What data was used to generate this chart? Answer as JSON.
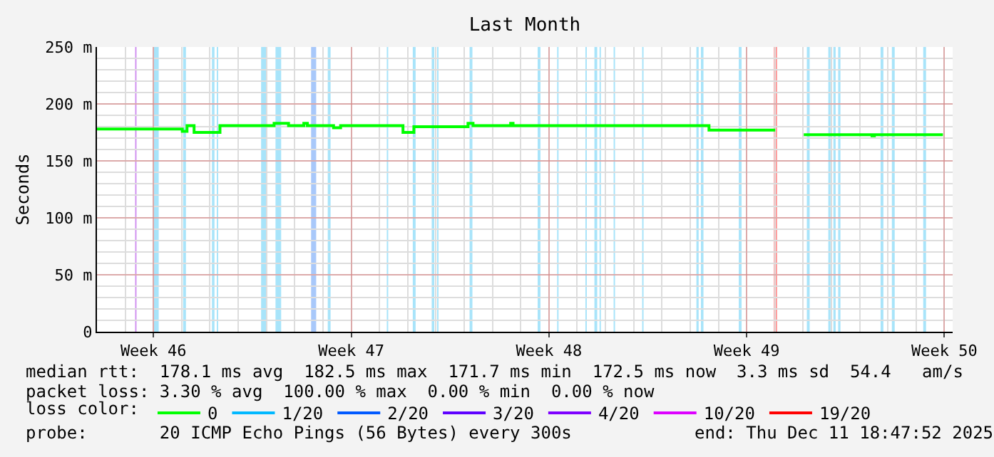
{
  "chart_data": {
    "type": "step",
    "title": "Last Month",
    "ylabel": "Seconds",
    "legend_title": "loss color:",
    "legend": "bottom",
    "grid": true,
    "marker": "none",
    "line_style": "solid",
    "xlim": [
      "2025-11-08T00:00",
      "2025-12-08T07:00"
    ],
    "xticks": [
      {
        "value": "2025-11-10",
        "label": "Week 46"
      },
      {
        "value": "2025-11-17",
        "label": "Week 47"
      },
      {
        "value": "2025-11-24",
        "label": "Week 48"
      },
      {
        "value": "2025-12-01",
        "label": "Week 49"
      },
      {
        "value": "2025-12-08",
        "label": "Week 50"
      }
    ],
    "ylim": [
      0,
      250
    ],
    "yticks": [
      0,
      {
        "value": 50,
        "label": "50 m"
      },
      {
        "value": 100,
        "label": "100 m"
      },
      {
        "value": 150,
        "label": "150 m"
      },
      {
        "value": 200,
        "label": "200 m"
      },
      {
        "value": 250,
        "label": "250 m"
      }
    ],
    "x": [
      "2025-11-08T00:00",
      "2025-11-10T16:30",
      "2025-11-11T00:30",
      "2025-11-11T04:30",
      "2025-11-11T10:30",
      "2025-11-12T02:30",
      "2025-11-12T08:30",
      "2025-11-14T06:30",
      "2025-11-14T18:45",
      "2025-11-15T07:45",
      "2025-11-15T10:45",
      "2025-11-16T09:00",
      "2025-11-16T15:00",
      "2025-11-18T19:00",
      "2025-11-18T20:00",
      "2025-11-19T03:00",
      "2025-11-19T05:15",
      "2025-11-20T23:15",
      "2025-11-21T03:15",
      "2025-11-21T07:30",
      "2025-11-22T15:30",
      "2025-11-22T17:30",
      "2025-11-29T14:00",
      "2025-11-29T16:00",
      "2025-12-02T00:15",
      "2025-12-02T12:00",
      "2025-12-03T00:30",
      "2025-12-05T10:30",
      "2025-12-05T12:30",
      "2025-12-07T22:45"
    ],
    "series": [
      {
        "name": "0",
        "color": "#00ff00",
        "values": [
          178,
          178,
          176,
          181,
          175,
          175,
          181,
          183,
          181,
          183,
          181,
          179,
          181,
          181,
          175,
          175,
          180,
          180,
          183,
          181,
          183,
          181,
          181,
          177,
          177,
          null,
          173,
          172,
          173,
          173
        ]
      },
      {
        "name": "1/20",
        "color": "#00b8ff",
        "values": [
          null,
          null,
          null,
          null,
          null,
          null,
          null,
          null,
          null,
          null,
          null,
          null,
          null,
          null,
          null,
          null,
          null,
          null,
          null,
          null,
          null,
          null,
          null,
          null,
          null,
          null,
          null,
          null,
          null,
          null
        ]
      },
      {
        "name": "2/20",
        "color": "#0059ff",
        "values": [
          null,
          null,
          null,
          null,
          null,
          null,
          null,
          null,
          null,
          null,
          null,
          null,
          null,
          null,
          null,
          null,
          null,
          null,
          null,
          null,
          null,
          null,
          null,
          null,
          null,
          null,
          null,
          null,
          null,
          null
        ]
      },
      {
        "name": "3/20",
        "color": "#5e00ff",
        "values": [
          null,
          null,
          null,
          null,
          null,
          null,
          null,
          null,
          null,
          null,
          null,
          null,
          null,
          null,
          null,
          null,
          null,
          null,
          null,
          null,
          null,
          null,
          null,
          null,
          null,
          null,
          null,
          null,
          null,
          null
        ]
      },
      {
        "name": "4/20",
        "color": "#7e00ff",
        "values": [
          null,
          null,
          null,
          null,
          null,
          null,
          null,
          null,
          null,
          null,
          null,
          null,
          null,
          null,
          null,
          null,
          null,
          null,
          null,
          null,
          null,
          null,
          null,
          null,
          null,
          null,
          null,
          null,
          null,
          null
        ]
      },
      {
        "name": "10/20",
        "color": "#dd00ff",
        "values": [
          null,
          null,
          null,
          null,
          null,
          null,
          null,
          null,
          null,
          null,
          null,
          null,
          null,
          null,
          null,
          null,
          null,
          null,
          null,
          null,
          null,
          null,
          null,
          null,
          null,
          null,
          null,
          null,
          null,
          null
        ]
      },
      {
        "name": "19/20",
        "color": "#ff0000",
        "values": [
          null,
          null,
          null,
          null,
          null,
          null,
          null,
          null,
          null,
          null,
          null,
          null,
          null,
          null,
          null,
          null,
          null,
          null,
          null,
          null,
          null,
          null,
          null,
          null,
          null,
          null,
          null,
          null,
          null,
          null
        ]
      }
    ],
    "bands": [
      {
        "axis": "x",
        "from": "2025-11-09T08:24",
        "to": "2025-11-09T09:36",
        "color": "#d090f0"
      },
      {
        "axis": "x",
        "from": "2025-11-10T00:22",
        "to": "2025-11-10T04:28",
        "color": "#a8e4fa"
      },
      {
        "axis": "x",
        "from": "2025-11-11T01:12",
        "to": "2025-11-11T03:36",
        "color": "#a8e4fa"
      },
      {
        "axis": "x",
        "from": "2025-11-12T01:41",
        "to": "2025-11-12T03:50",
        "color": "#a8e4fa"
      },
      {
        "axis": "x",
        "from": "2025-11-12T05:46",
        "to": "2025-11-12T06:58",
        "color": "#a8e4fa"
      },
      {
        "axis": "x",
        "from": "2025-11-13T19:26",
        "to": "2025-11-14T00:14",
        "color": "#a8e4fa"
      },
      {
        "axis": "x",
        "from": "2025-11-14T07:41",
        "to": "2025-11-14T12:29",
        "color": "#a8e4fa"
      },
      {
        "axis": "x",
        "from": "2025-11-15T13:55",
        "to": "2025-11-15T18:14",
        "color": "#a8c8fa"
      },
      {
        "axis": "x",
        "from": "2025-11-16T04:05",
        "to": "2025-11-16T06:29",
        "color": "#a8e4fa"
      },
      {
        "axis": "x",
        "from": "2025-11-18T06:14",
        "to": "2025-11-18T07:26",
        "color": "#a8e4fa"
      },
      {
        "axis": "x",
        "from": "2025-11-19T04:19",
        "to": "2025-11-19T06:43",
        "color": "#a8e4fa"
      },
      {
        "axis": "x",
        "from": "2025-11-19T20:24",
        "to": "2025-11-19T22:34",
        "color": "#a8e4fa"
      },
      {
        "axis": "x",
        "from": "2025-11-20T00:58",
        "to": "2025-11-20T02:10",
        "color": "#a8e4fa"
      },
      {
        "axis": "x",
        "from": "2025-11-21T04:34",
        "to": "2025-11-21T06:58",
        "color": "#a8e4fa"
      },
      {
        "axis": "x",
        "from": "2025-11-23T14:24",
        "to": "2025-11-23T16:48",
        "color": "#a8e4fa"
      },
      {
        "axis": "x",
        "from": "2025-11-24T06:58",
        "to": "2025-11-24T08:10",
        "color": "#a8e4fa"
      },
      {
        "axis": "x",
        "from": "2025-11-25T06:58",
        "to": "2025-11-25T08:10",
        "color": "#a8e4fa"
      },
      {
        "axis": "x",
        "from": "2025-11-25T14:38",
        "to": "2025-11-25T17:02",
        "color": "#a8e4fa"
      },
      {
        "axis": "x",
        "from": "2025-11-25T18:58",
        "to": "2025-11-25T20:10",
        "color": "#a8e4fa"
      },
      {
        "axis": "x",
        "from": "2025-11-26T06:58",
        "to": "2025-11-26T08:10",
        "color": "#a8e4fa"
      },
      {
        "axis": "x",
        "from": "2025-11-27T07:12",
        "to": "2025-11-27T08:24",
        "color": "#a8e4fa"
      },
      {
        "axis": "x",
        "from": "2025-11-29T05:17",
        "to": "2025-11-29T07:12",
        "color": "#a8e4fa"
      },
      {
        "axis": "x",
        "from": "2025-11-29T09:07",
        "to": "2025-11-29T11:17",
        "color": "#a8e4fa"
      },
      {
        "axis": "x",
        "from": "2025-11-30T17:17",
        "to": "2025-11-30T19:41",
        "color": "#a8e4fa"
      },
      {
        "axis": "x",
        "from": "2025-12-01T23:02",
        "to": "2025-12-02T01:55",
        "color": "#ff9a9a"
      },
      {
        "axis": "x",
        "from": "2025-12-03T03:07",
        "to": "2025-12-03T05:31",
        "color": "#a8e4fa"
      },
      {
        "axis": "x",
        "from": "2025-12-03T21:22",
        "to": "2025-12-03T23:17",
        "color": "#a8e4fa"
      },
      {
        "axis": "x",
        "from": "2025-12-04T01:41",
        "to": "2025-12-04T03:36",
        "color": "#a8e4fa"
      },
      {
        "axis": "x",
        "from": "2025-12-04T05:46",
        "to": "2025-12-04T07:41",
        "color": "#a8e4fa"
      },
      {
        "axis": "x",
        "from": "2025-12-05T17:46",
        "to": "2025-12-05T20:10",
        "color": "#a8e4fa"
      },
      {
        "axis": "x",
        "from": "2025-12-06T03:22",
        "to": "2025-12-06T05:46",
        "color": "#a8e4fa"
      },
      {
        "axis": "x",
        "from": "2025-12-07T06:00",
        "to": "2025-12-07T08:24",
        "color": "#a8e4fa"
      }
    ],
    "annotations": [
      "median rtt:  178.1 ms avg  182.5 ms max  171.7 ms min  172.5 ms now  3.3 ms sd  54.4   am/s",
      "packet loss: 3.30 % avg  100.00 % max  0.00 % min  0.00 % now",
      "probe:       20 ICMP Echo Pings (56 Bytes) every 300s",
      "end: Thu Dec 11 18:47:52 2025"
    ]
  }
}
